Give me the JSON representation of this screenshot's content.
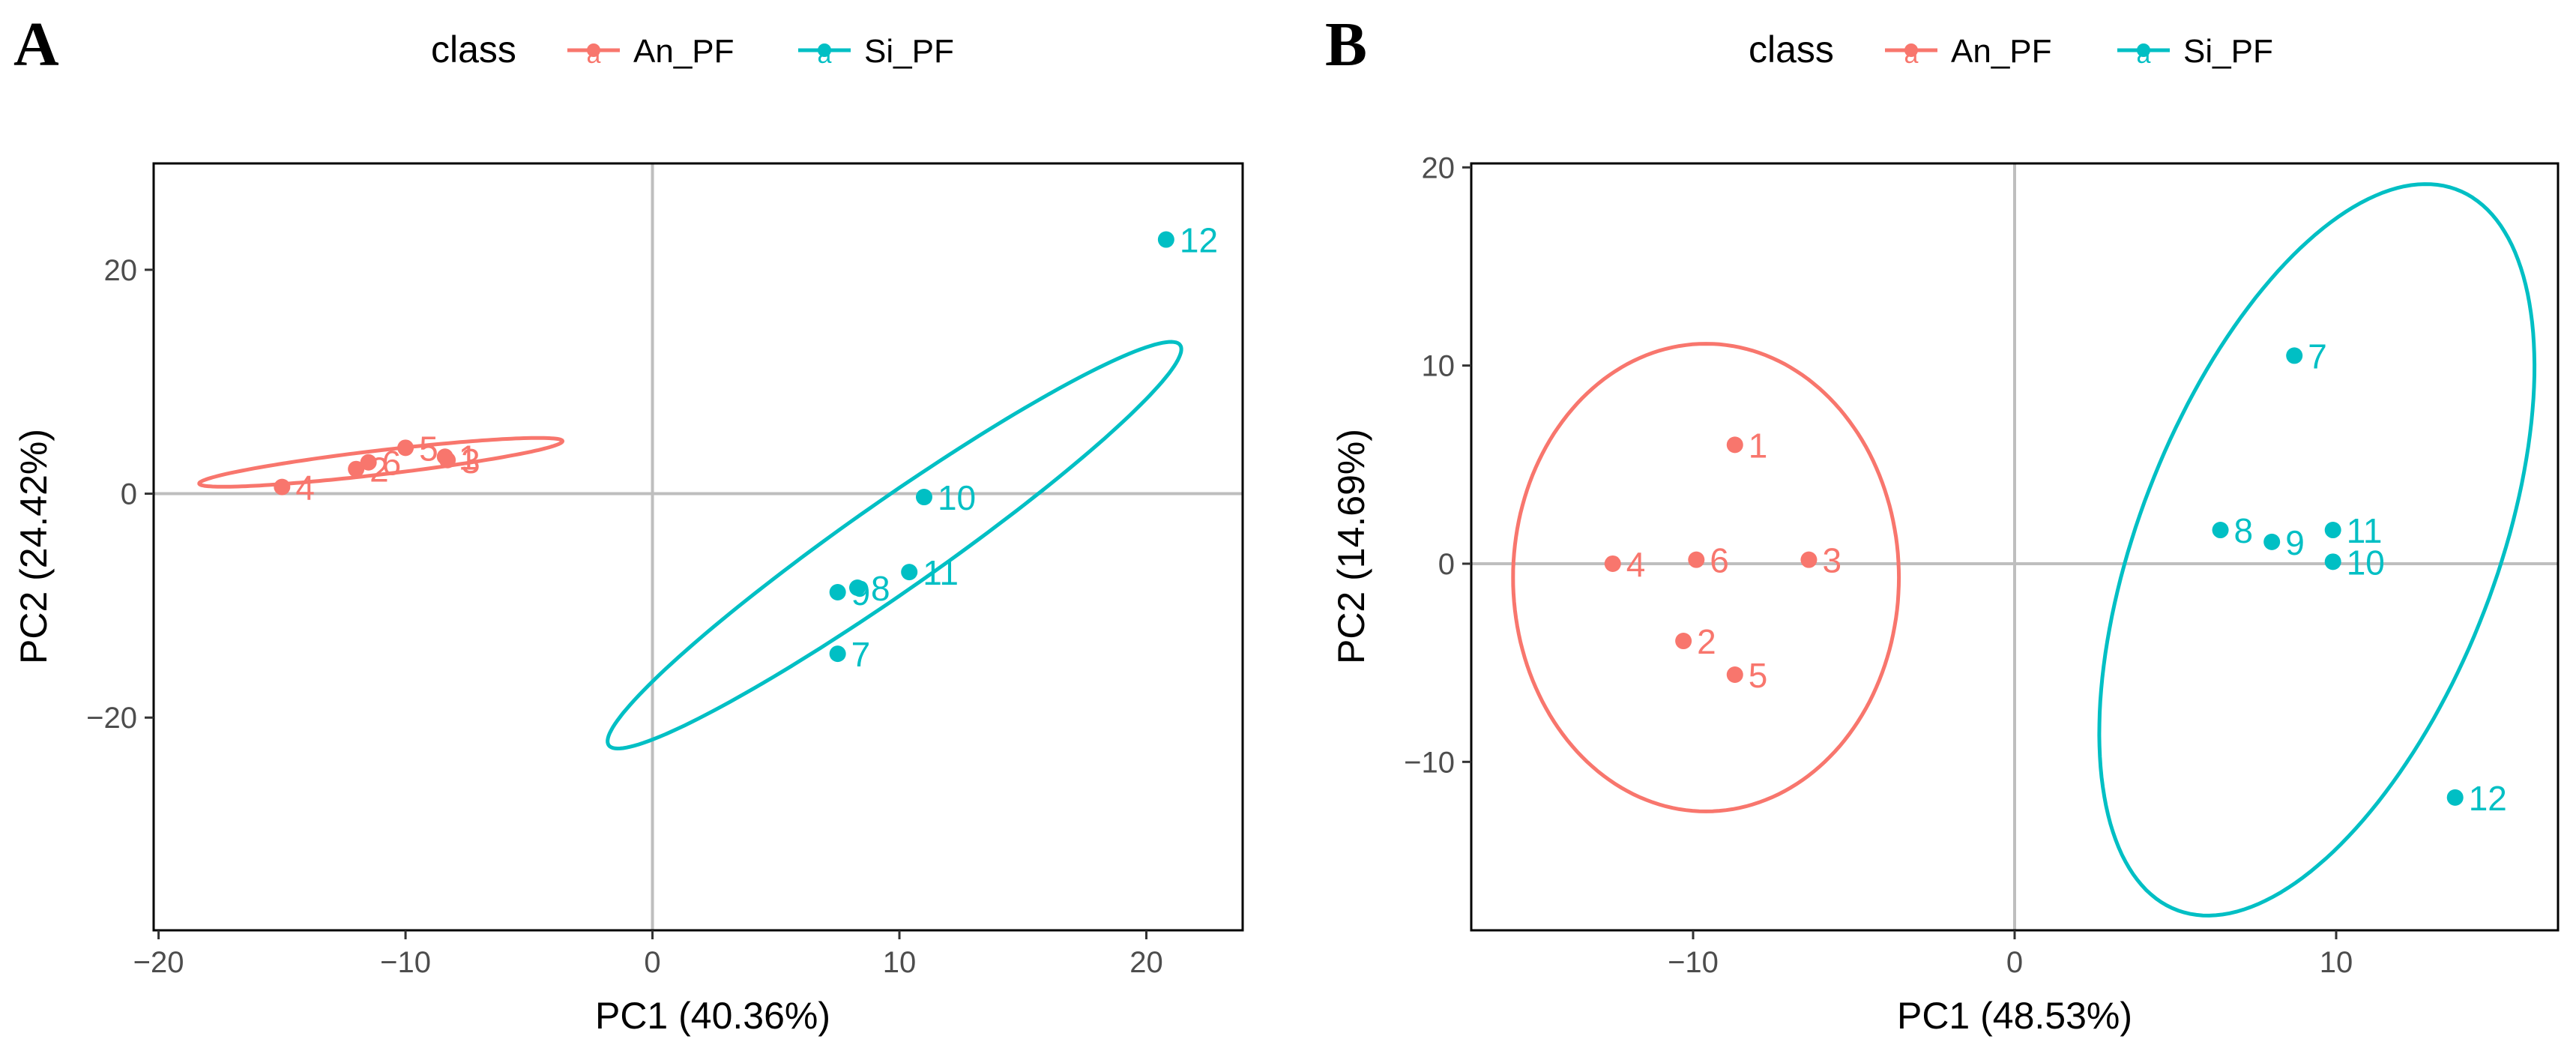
{
  "colors": {
    "An_PF": "#f8766d",
    "Si_PF": "#00bfc4",
    "zero_line": "#bebebe",
    "tick_text": "#4d4d4d"
  },
  "legend": {
    "title": "class",
    "key_glyph": "a",
    "items": [
      {
        "label": "An_PF",
        "color_key": "An_PF"
      },
      {
        "label": "Si_PF",
        "color_key": "Si_PF"
      }
    ]
  },
  "chart_data": [
    {
      "panel_label": "A",
      "type": "scatter",
      "xlabel": "PC1 (40.36%)",
      "ylabel": "PC2 (24.42%)",
      "xlim": [
        -20.2,
        23.9
      ],
      "ylim": [
        -39.0,
        29.5
      ],
      "x_ticks": [
        -20,
        -10,
        0,
        10,
        20
      ],
      "x_tick_labels": [
        "−20",
        "−10",
        "0",
        "10",
        "20"
      ],
      "y_ticks": [
        -20,
        0,
        20
      ],
      "y_tick_labels": [
        "−20",
        "0",
        "20"
      ],
      "grid": false,
      "zero_lines": true,
      "series": [
        {
          "name": "An_PF",
          "points": [
            {
              "label": "1",
              "x": -8.4,
              "y": 3.3
            },
            {
              "label": "2",
              "x": -12.0,
              "y": 2.2
            },
            {
              "label": "3",
              "x": -8.3,
              "y": 3.0
            },
            {
              "label": "4",
              "x": -15.0,
              "y": 0.6
            },
            {
              "label": "5",
              "x": -10.0,
              "y": 4.1
            },
            {
              "label": "6",
              "x": -11.5,
              "y": 2.8
            }
          ],
          "ellipse": {
            "cx": -11.0,
            "cy": 2.8,
            "rx": 7.6,
            "ry": 1.05,
            "angle_deg": 14.7
          }
        },
        {
          "name": "Si_PF",
          "points": [
            {
              "label": "7",
              "x": 7.5,
              "y": -14.3
            },
            {
              "label": "8",
              "x": 8.3,
              "y": -8.4
            },
            {
              "label": "9",
              "x": 7.5,
              "y": -8.8
            },
            {
              "label": "10",
              "x": 11.0,
              "y": -0.3
            },
            {
              "label": "11",
              "x": 10.4,
              "y": -7.0
            },
            {
              "label": "12",
              "x": 20.8,
              "y": 22.7
            }
          ],
          "ellipse": {
            "cx": 9.8,
            "cy": -4.6,
            "rx": 21.4,
            "ry": 2.62,
            "angle_deg": 57.8
          }
        }
      ]
    },
    {
      "panel_label": "B",
      "type": "scatter",
      "xlabel": "PC1 (48.53%)",
      "ylabel": "PC2 (14.69%)",
      "xlim": [
        -16.9,
        16.9
      ],
      "ylim": [
        -18.5,
        20.2
      ],
      "x_ticks": [
        -10,
        0,
        10
      ],
      "x_tick_labels": [
        "−10",
        "0",
        "10"
      ],
      "y_ticks": [
        -10,
        0,
        10,
        20
      ],
      "y_tick_labels": [
        "−10",
        "0",
        "10",
        "20"
      ],
      "grid": false,
      "zero_lines": true,
      "series": [
        {
          "name": "An_PF",
          "points": [
            {
              "label": "1",
              "x": -8.7,
              "y": 6.0
            },
            {
              "label": "2",
              "x": -10.3,
              "y": -3.9
            },
            {
              "label": "3",
              "x": -6.4,
              "y": 0.2
            },
            {
              "label": "4",
              "x": -12.5,
              "y": 0.0
            },
            {
              "label": "5",
              "x": -8.7,
              "y": -5.6
            },
            {
              "label": "6",
              "x": -9.9,
              "y": 0.2
            }
          ],
          "ellipse": {
            "cx": -9.6,
            "cy": -0.7,
            "rx": 6.0,
            "ry": 11.8,
            "angle_deg": 0
          }
        },
        {
          "name": "Si_PF",
          "points": [
            {
              "label": "7",
              "x": 8.7,
              "y": 10.5
            },
            {
              "label": "8",
              "x": 6.4,
              "y": 1.7
            },
            {
              "label": "9",
              "x": 8.0,
              "y": 1.1
            },
            {
              "label": "10",
              "x": 9.9,
              "y": 0.1
            },
            {
              "label": "11",
              "x": 9.9,
              "y": 1.7
            },
            {
              "label": "12",
              "x": 13.7,
              "y": -11.8
            }
          ],
          "ellipse": {
            "cx": 9.4,
            "cy": 0.7,
            "rx": 5.75,
            "ry": 18.8,
            "angle_deg": -11.5
          }
        }
      ]
    }
  ]
}
